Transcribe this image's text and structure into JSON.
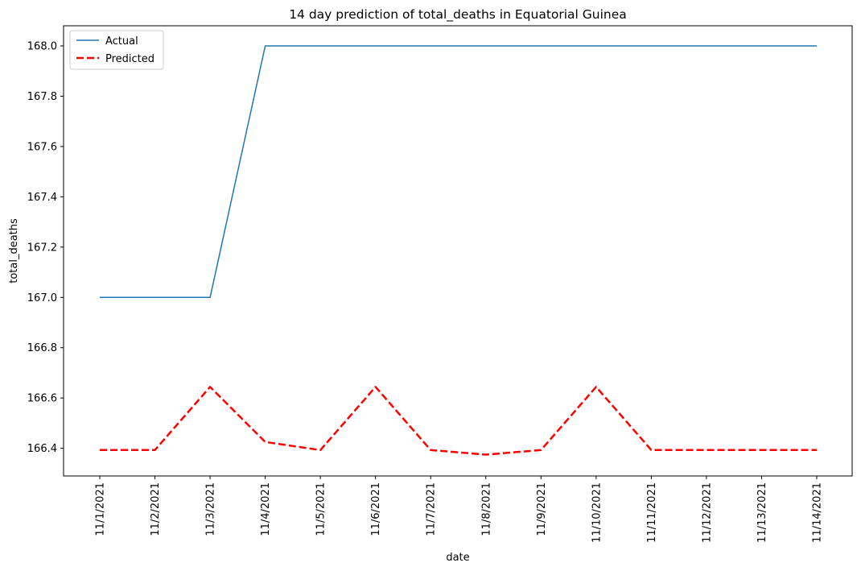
{
  "chart_data": {
    "type": "line",
    "title": "14 day prediction of total_deaths in Equatorial Guinea",
    "xlabel": "date",
    "ylabel": "total_deaths",
    "ylim": [
      166.29,
      168.08
    ],
    "yticks": [
      "166.4",
      "166.6",
      "166.8",
      "167.0",
      "167.2",
      "167.4",
      "167.6",
      "167.8",
      "168.0"
    ],
    "categories": [
      "11/1/2021",
      "11/2/2021",
      "11/3/2021",
      "11/4/2021",
      "11/5/2021",
      "11/6/2021",
      "11/7/2021",
      "11/8/2021",
      "11/9/2021",
      "11/10/2021",
      "11/11/2021",
      "11/12/2021",
      "11/13/2021",
      "11/14/2021"
    ],
    "series": [
      {
        "name": "Actual",
        "color": "#1f77b4",
        "dash": "solid",
        "values": [
          167,
          167,
          167,
          168,
          168,
          168,
          168,
          168,
          168,
          168,
          168,
          168,
          168,
          168
        ]
      },
      {
        "name": "Predicted",
        "color": "#ff0000",
        "dash": "dashed",
        "values": [
          166.393,
          166.393,
          166.644,
          166.425,
          166.393,
          166.644,
          166.393,
          166.375,
          166.393,
          166.644,
          166.393,
          166.393,
          166.393,
          166.393
        ]
      }
    ],
    "legend": "top-left",
    "grid": false
  }
}
